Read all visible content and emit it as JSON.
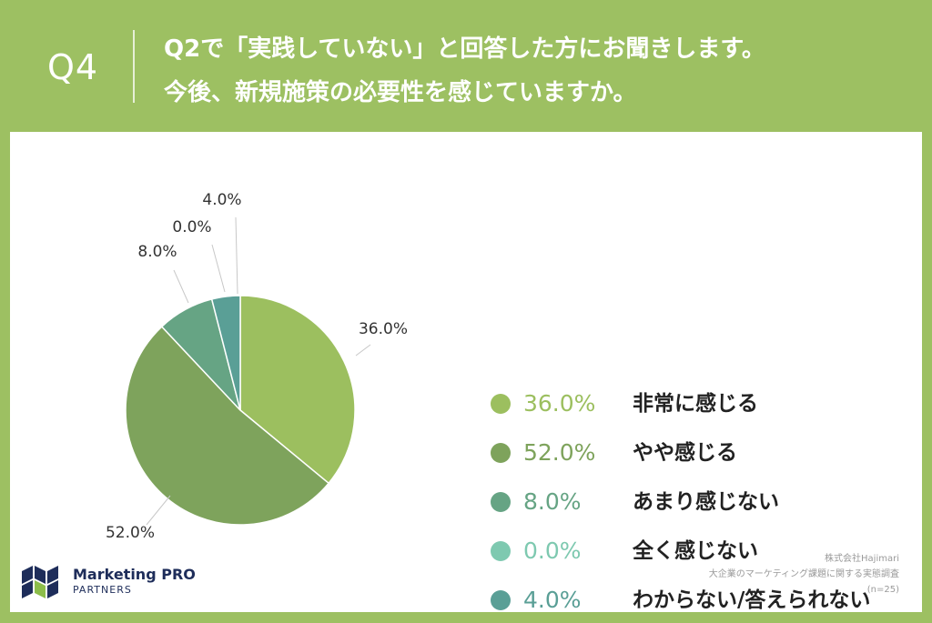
{
  "header": {
    "qnum": "Q4",
    "question_line1": "Q2で「実践していない」と回答した方にお聞きします。",
    "question_line2": "今後、新規施策の必要性を感じていますか。"
  },
  "chart_data": {
    "type": "pie",
    "categories": [
      "非常に感じる",
      "やや感じる",
      "あまり感じない",
      "全く感じない",
      "わからない/答えられない"
    ],
    "values": [
      36.0,
      52.0,
      8.0,
      0.0,
      4.0
    ],
    "value_labels": [
      "36.0%",
      "52.0%",
      "8.0%",
      "0.0%",
      "4.0%"
    ],
    "colors": [
      "#9cbf5f",
      "#7ea35c",
      "#66a484",
      "#7ec9b0",
      "#5a9f96"
    ],
    "start": "12 o'clock, clockwise",
    "legend_position": "right"
  },
  "footer": {
    "logo_line1": "Marketing PRO",
    "logo_line2": "PARTNERS",
    "source_line1": "株式会社Hajimari",
    "source_line2": "大企業のマーケティング課題に関する実態調査",
    "source_line3": "(n=25)"
  }
}
